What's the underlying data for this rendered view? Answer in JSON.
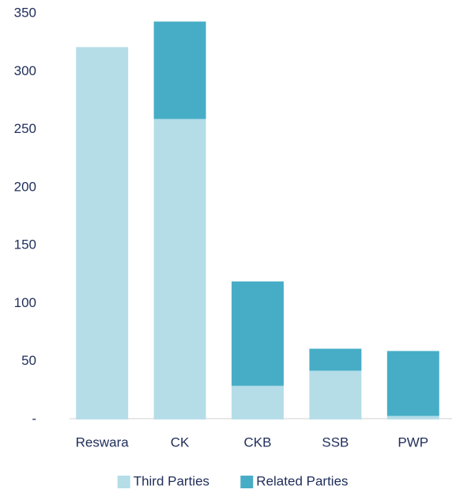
{
  "chart_data": {
    "type": "stacked_bar",
    "categories": [
      "Reswara",
      "CK",
      "CKB",
      "SSB",
      "PWP"
    ],
    "series": [
      {
        "name": "Third Parties",
        "color": "#b4dde8",
        "values": [
          321,
          259,
          29,
          42,
          3
        ]
      },
      {
        "name": "Related Parties",
        "color": "#47adc6",
        "values": [
          0,
          84,
          90,
          19,
          56
        ]
      }
    ],
    "ylim": [
      0,
      350
    ],
    "yticks": [
      {
        "value": 0,
        "label": "-"
      },
      50,
      100,
      150,
      200,
      250,
      300,
      350
    ],
    "grid": false,
    "legend": "bottom"
  }
}
